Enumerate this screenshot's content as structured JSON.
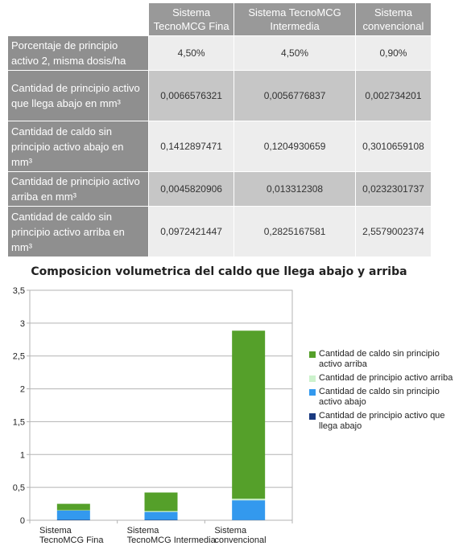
{
  "table": {
    "columns": [
      "Sistema TecnoMCG Fina",
      "Sistema TecnoMCG Intermedia",
      "Sistema convencional"
    ],
    "rows": [
      {
        "label": "Porcentaje de principio activo 2, misma dosis/ha",
        "values": [
          "4,50%",
          "4,50%",
          "0,90%"
        ]
      },
      {
        "label": "Cantidad de principio activo que llega abajo en mm³",
        "values": [
          "0,0066576321",
          "0,0056776837",
          "0,002734201"
        ]
      },
      {
        "label": "Cantidad de caldo sin principio activo abajo en mm³",
        "values": [
          "0,1412897471",
          "0,1204930659",
          "0,3010659108"
        ]
      },
      {
        "label": "Cantidad de principio activo arriba en mm³",
        "values": [
          "0,0045820906",
          "0,013312308",
          "0,0232301737"
        ]
      },
      {
        "label": "Cantidad de caldo sin principio activo arriba en mm³",
        "values": [
          "0,0972421447",
          "0,2825167581",
          "2,5579002374"
        ]
      }
    ]
  },
  "chart_data": {
    "type": "bar",
    "stacked": true,
    "title": "Composicion volumetrica del caldo que llega abajo y arriba",
    "categories": [
      "Sistema TecnoMCG Fina",
      "Sistema TecnoMCG Intermedia",
      "Sistema convencional"
    ],
    "series": [
      {
        "name": "Cantidad de principio activo que llega abajo",
        "color": "#1a3a80",
        "values": [
          0.0066576321,
          0.0056776837,
          0.002734201
        ]
      },
      {
        "name": "Cantidad de caldo sin principio activo abajo",
        "color": "#3399ee",
        "values": [
          0.1412897471,
          0.1204930659,
          0.3010659108
        ]
      },
      {
        "name": "Cantidad de principio activo arriba",
        "color": "#ccf2cc",
        "values": [
          0.0045820906,
          0.013312308,
          0.0232301737
        ]
      },
      {
        "name": "Cantidad de caldo sin principio activo arriba",
        "color": "#55a02a",
        "values": [
          0.0972421447,
          0.2825167581,
          2.5579002374
        ]
      }
    ],
    "legend_order": [
      3,
      2,
      1,
      0
    ],
    "ylim": [
      0,
      3.5
    ],
    "yticks": [
      "0",
      "0,5",
      "1",
      "1,5",
      "2",
      "2,5",
      "3",
      "3,5"
    ],
    "grid": true,
    "legend_position": "right"
  }
}
